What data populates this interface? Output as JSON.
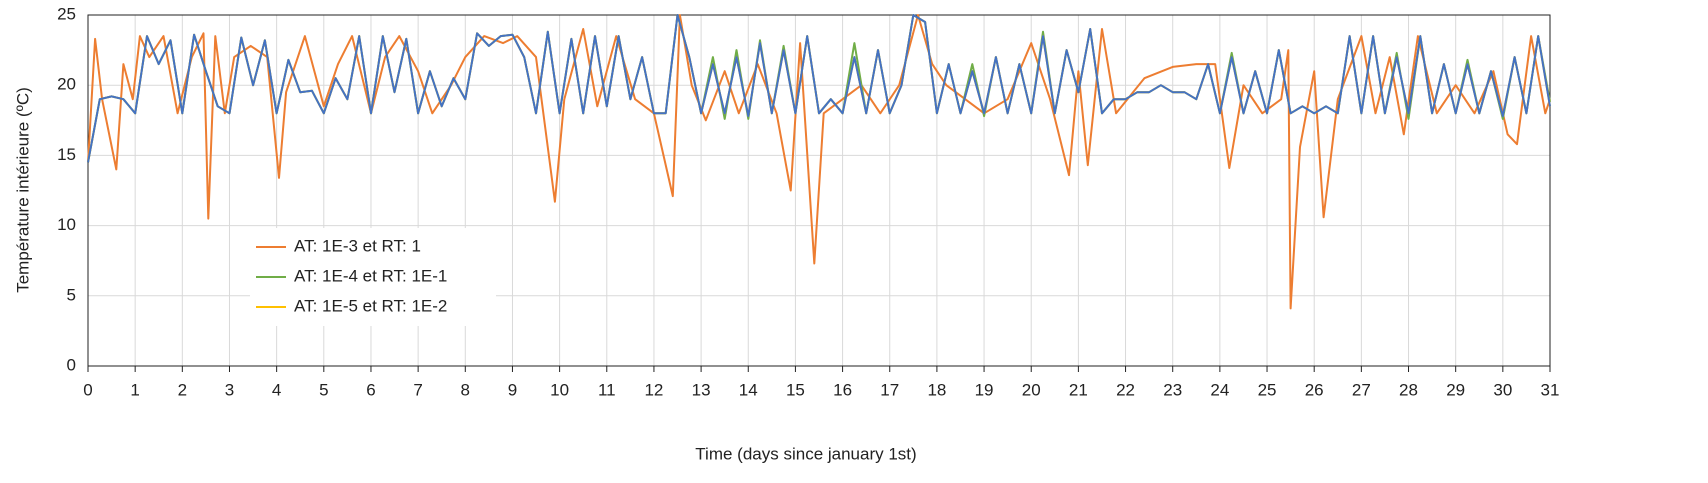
{
  "chart_data": {
    "type": "line",
    "ylabel": "Température intérieure (ºC)",
    "xlabel": "Time (days since january 1st)",
    "xlim": [
      0,
      31
    ],
    "xticks": [
      0,
      1,
      2,
      3,
      4,
      5,
      6,
      7,
      8,
      9,
      10,
      11,
      12,
      13,
      14,
      15,
      16,
      17,
      18,
      19,
      20,
      21,
      22,
      23,
      24,
      25,
      26,
      27,
      28,
      29,
      30,
      31
    ],
    "ylim": [
      0,
      25
    ],
    "yticks": [
      0,
      5,
      10,
      15,
      20,
      25
    ],
    "grid": true,
    "legend": "left",
    "x": [
      0,
      0.25,
      0.5,
      0.75,
      1,
      1.25,
      1.5,
      1.75,
      2,
      2.25,
      2.5,
      2.75,
      3,
      3.25,
      3.5,
      3.75,
      4,
      4.25,
      4.5,
      4.75,
      5,
      5.25,
      5.5,
      5.75,
      6,
      6.25,
      6.5,
      6.75,
      7,
      7.25,
      7.5,
      7.75,
      8,
      8.25,
      8.5,
      8.75,
      9,
      9.25,
      9.5,
      9.75,
      10,
      10.25,
      10.5,
      10.75,
      11,
      11.25,
      11.5,
      11.75,
      12,
      12.25,
      12.5,
      12.75,
      13,
      13.25,
      13.5,
      13.75,
      14,
      14.25,
      14.5,
      14.75,
      15,
      15.25,
      15.5,
      15.75,
      16,
      16.25,
      16.5,
      16.75,
      17,
      17.25,
      17.5,
      17.75,
      18,
      18.25,
      18.5,
      18.75,
      19,
      19.25,
      19.5,
      19.75,
      20,
      20.25,
      20.5,
      20.75,
      21,
      21.25,
      21.5,
      21.75,
      22,
      22.25,
      22.5,
      22.75,
      23,
      23.25,
      23.5,
      23.75,
      24,
      24.25,
      24.5,
      24.75,
      25,
      25.25,
      25.5,
      25.75,
      26,
      26.25,
      26.5,
      26.75,
      27,
      27.25,
      27.5,
      27.75,
      28,
      28.25,
      28.5,
      28.75,
      29,
      29.25,
      29.5,
      29.75,
      30,
      30.25,
      30.5,
      30.75,
      31
    ],
    "series": [
      {
        "name": "AT: 1E-3 et RT: 1",
        "color": "#ed7d31",
        "x": [
          0,
          0.15,
          0.3,
          0.6,
          0.75,
          0.95,
          1.1,
          1.3,
          1.6,
          1.9,
          2.2,
          2.45,
          2.55,
          2.7,
          2.9,
          3.1,
          3.45,
          3.8,
          4.05,
          4.2,
          4.6,
          5,
          5.3,
          5.6,
          6,
          6.3,
          6.6,
          7,
          7.3,
          7.7,
          8,
          8.4,
          8.8,
          9.1,
          9.5,
          9.9,
          10.1,
          10.5,
          10.8,
          11.2,
          11.6,
          12,
          12.4,
          12.55,
          12.8,
          13.1,
          13.5,
          13.8,
          14.2,
          14.6,
          14.9,
          15.1,
          15.4,
          15.6,
          16,
          16.4,
          16.8,
          17.2,
          17.6,
          17.9,
          18.2,
          18.6,
          19,
          19.5,
          20,
          20.4,
          20.8,
          21,
          21.2,
          21.5,
          21.8,
          22.4,
          23,
          23.5,
          23.9,
          24.2,
          24.5,
          24.9,
          25.3,
          25.45,
          25.5,
          25.7,
          26,
          26.2,
          26.5,
          27,
          27.3,
          27.6,
          27.9,
          28.2,
          28.6,
          29,
          29.4,
          29.8,
          30.1,
          30.3,
          30.6,
          30.9,
          31
        ],
        "values": [
          14.5,
          23.3,
          19,
          14,
          21.5,
          19,
          23.5,
          22,
          23.5,
          18,
          22,
          23.7,
          10.5,
          23.5,
          18,
          22,
          22.8,
          22,
          13.4,
          19.5,
          23.5,
          18.5,
          21.5,
          23.5,
          18,
          22,
          23.5,
          21,
          18,
          20,
          22,
          23.5,
          23,
          23.5,
          22,
          11.7,
          19,
          24,
          18.5,
          23.5,
          19,
          18,
          12.1,
          25,
          20,
          17.5,
          21,
          18,
          21.5,
          18,
          12.5,
          23,
          7.3,
          18,
          19,
          20,
          18,
          20,
          25,
          21.5,
          20,
          19,
          18,
          19,
          23,
          19,
          13.6,
          21,
          14.3,
          24,
          18,
          20.5,
          21.3,
          21.5,
          21.5,
          14.1,
          20,
          18,
          19,
          22.5,
          4.1,
          15.6,
          21,
          10.6,
          19,
          23.5,
          18,
          22,
          16.5,
          23.5,
          18,
          20,
          18,
          21,
          16.5,
          15.8,
          23.5,
          18,
          19
        ]
      },
      {
        "name": "AT: 1E-4 et RT: 1E-1",
        "color": "#70ad47",
        "values": [
          14.5,
          19,
          19.2,
          19,
          18,
          23.5,
          21.5,
          23.2,
          18,
          23.6,
          21,
          18.5,
          18,
          23.4,
          20,
          23.2,
          18,
          21.8,
          19.5,
          19.6,
          18,
          20.5,
          19,
          23.5,
          18,
          23.5,
          19.5,
          23.3,
          18,
          21,
          18.5,
          20.5,
          19,
          23.7,
          22.8,
          23.5,
          23.6,
          22,
          18,
          23.8,
          18,
          23.3,
          18,
          23.5,
          18.5,
          23.5,
          19,
          22,
          18,
          18,
          25,
          22,
          18,
          22,
          17.6,
          22.5,
          17.6,
          23.2,
          18,
          22.8,
          18,
          23.5,
          18,
          19,
          18,
          23,
          18,
          22.5,
          18,
          20,
          25,
          24.5,
          18,
          21.5,
          18,
          21.5,
          17.8,
          22,
          18,
          21.5,
          18,
          23.8,
          18,
          22.5,
          19.5,
          24,
          18,
          19,
          19,
          19.5,
          19.5,
          20,
          19.5,
          19.5,
          19,
          21.5,
          18,
          22.3,
          18,
          21,
          18,
          22.5,
          18,
          18.5,
          18,
          18.5,
          18,
          23.5,
          18,
          23.5,
          18,
          22.3,
          17.6,
          23.5,
          18,
          21.5,
          18,
          21.8,
          18,
          21,
          17.6,
          22,
          18,
          23.5,
          18.8
        ]
      },
      {
        "name": "AT: 1E-5 et RT: 1E-2",
        "color": "#ffc000",
        "values": [
          14.5,
          19,
          19.2,
          19,
          18,
          23.5,
          21.5,
          23.2,
          18,
          23.6,
          21,
          18.5,
          18,
          23.4,
          20,
          23.2,
          18,
          21.8,
          19.5,
          19.6,
          18,
          20.5,
          19,
          23.5,
          18,
          23.5,
          19.5,
          23.3,
          18,
          21,
          18.5,
          20.5,
          19,
          23.7,
          22.8,
          23.5,
          23.6,
          22,
          18,
          23.8,
          18,
          23.3,
          18,
          23.5,
          18.5,
          23.5,
          19,
          22,
          18,
          18,
          25,
          22,
          18,
          21.5,
          18,
          22,
          17.8,
          23,
          18,
          22.5,
          18,
          23.5,
          18,
          19,
          18,
          22,
          18,
          22.5,
          18,
          20,
          25,
          24.5,
          18,
          21.5,
          18,
          21,
          18,
          22,
          18,
          21.5,
          18,
          23.5,
          18,
          22.5,
          19.5,
          24,
          18,
          19,
          19,
          19.5,
          19.5,
          20,
          19.5,
          19.5,
          19,
          21.5,
          18,
          22,
          18,
          21,
          18,
          22.5,
          18,
          18.5,
          18,
          18.5,
          18,
          23.5,
          18,
          23.5,
          18,
          22,
          18,
          23.5,
          18,
          21.5,
          18,
          21.5,
          18,
          21,
          17.8,
          22,
          18,
          23.5,
          18.5
        ]
      },
      {
        "color": "#4472c4",
        "values": [
          14.5,
          19,
          19.2,
          19,
          18,
          23.5,
          21.5,
          23.2,
          18,
          23.6,
          21,
          18.5,
          18,
          23.4,
          20,
          23.2,
          18,
          21.8,
          19.5,
          19.6,
          18,
          20.5,
          19,
          23.5,
          18,
          23.5,
          19.5,
          23.3,
          18,
          21,
          18.5,
          20.5,
          19,
          23.7,
          22.8,
          23.5,
          23.6,
          22,
          18,
          23.8,
          18,
          23.3,
          18,
          23.5,
          18.5,
          23.5,
          19,
          22,
          18,
          18,
          25,
          22,
          18,
          21.5,
          18,
          22,
          17.8,
          23,
          18,
          22.5,
          18,
          23.5,
          18,
          19,
          18,
          22,
          18,
          22.5,
          18,
          20,
          25,
          24.5,
          18,
          21.5,
          18,
          21,
          18,
          22,
          18,
          21.5,
          18,
          23.5,
          18,
          22.5,
          19.5,
          24,
          18,
          19,
          19,
          19.5,
          19.5,
          20,
          19.5,
          19.5,
          19,
          21.5,
          18,
          22,
          18,
          21,
          18,
          22.5,
          18,
          18.5,
          18,
          18.5,
          18,
          23.5,
          18,
          23.5,
          18,
          22,
          18,
          23.5,
          18,
          21.5,
          18,
          21.5,
          18,
          21,
          17.8,
          22,
          18,
          23.5,
          18.5
        ]
      }
    ]
  }
}
